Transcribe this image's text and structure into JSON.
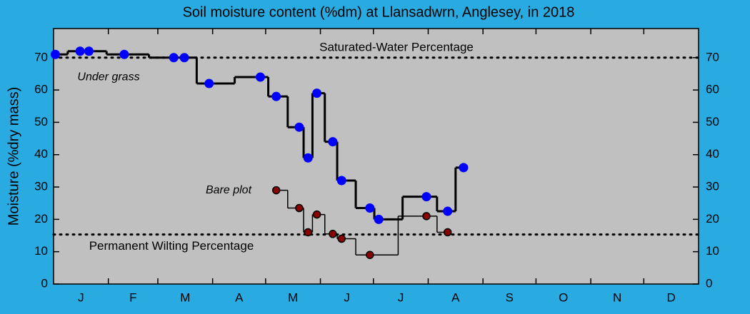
{
  "chart_data": {
    "type": "line",
    "title": "Soil moisture content (%dm)  at Llansadwrn, Anglesey, in 2018",
    "ylabel": "Moisture (%dry mass)",
    "xlim": [
      0,
      365
    ],
    "xticks": [
      {
        "value": 15.5,
        "label": "J"
      },
      {
        "value": 45,
        "label": "F"
      },
      {
        "value": 74.5,
        "label": "M"
      },
      {
        "value": 105,
        "label": "A"
      },
      {
        "value": 135.5,
        "label": "M"
      },
      {
        "value": 166,
        "label": "J"
      },
      {
        "value": 196.5,
        "label": "J"
      },
      {
        "value": 227.5,
        "label": "A"
      },
      {
        "value": 258,
        "label": "S"
      },
      {
        "value": 288.5,
        "label": "O"
      },
      {
        "value": 319,
        "label": "N"
      },
      {
        "value": 349.5,
        "label": "D"
      }
    ],
    "xminor_ticks": [
      31,
      59,
      90,
      120,
      151,
      181,
      212,
      243,
      273,
      304,
      334
    ],
    "ylim": [
      0,
      79
    ],
    "yticks": [
      0,
      10,
      20,
      30,
      40,
      50,
      60,
      70
    ],
    "reference_lines": [
      {
        "label": "Saturated-Water Percentage",
        "value": 70
      },
      {
        "label": "Permanent Wilting Percentage",
        "value": 15.3
      }
    ],
    "series": [
      {
        "name": "Under grass",
        "color": "#0000ff",
        "line_width": 3,
        "x": [
          1,
          15,
          20,
          40,
          68,
          74,
          88,
          117,
          126,
          139,
          144,
          149,
          158,
          163,
          179,
          184,
          211,
          223,
          232
        ],
        "values": [
          71,
          72,
          72,
          71,
          70,
          70,
          62,
          64,
          58,
          48.5,
          39,
          59,
          44,
          32,
          23.5,
          20,
          27,
          22.5,
          36
        ]
      },
      {
        "name": "Bare plot",
        "color": "#8b0000",
        "line_width": 1.5,
        "x": [
          126,
          139,
          144,
          149,
          158,
          163,
          179,
          211,
          223
        ],
        "values": [
          29,
          23.5,
          16,
          21.5,
          15.5,
          14,
          9,
          21,
          16
        ]
      }
    ]
  }
}
